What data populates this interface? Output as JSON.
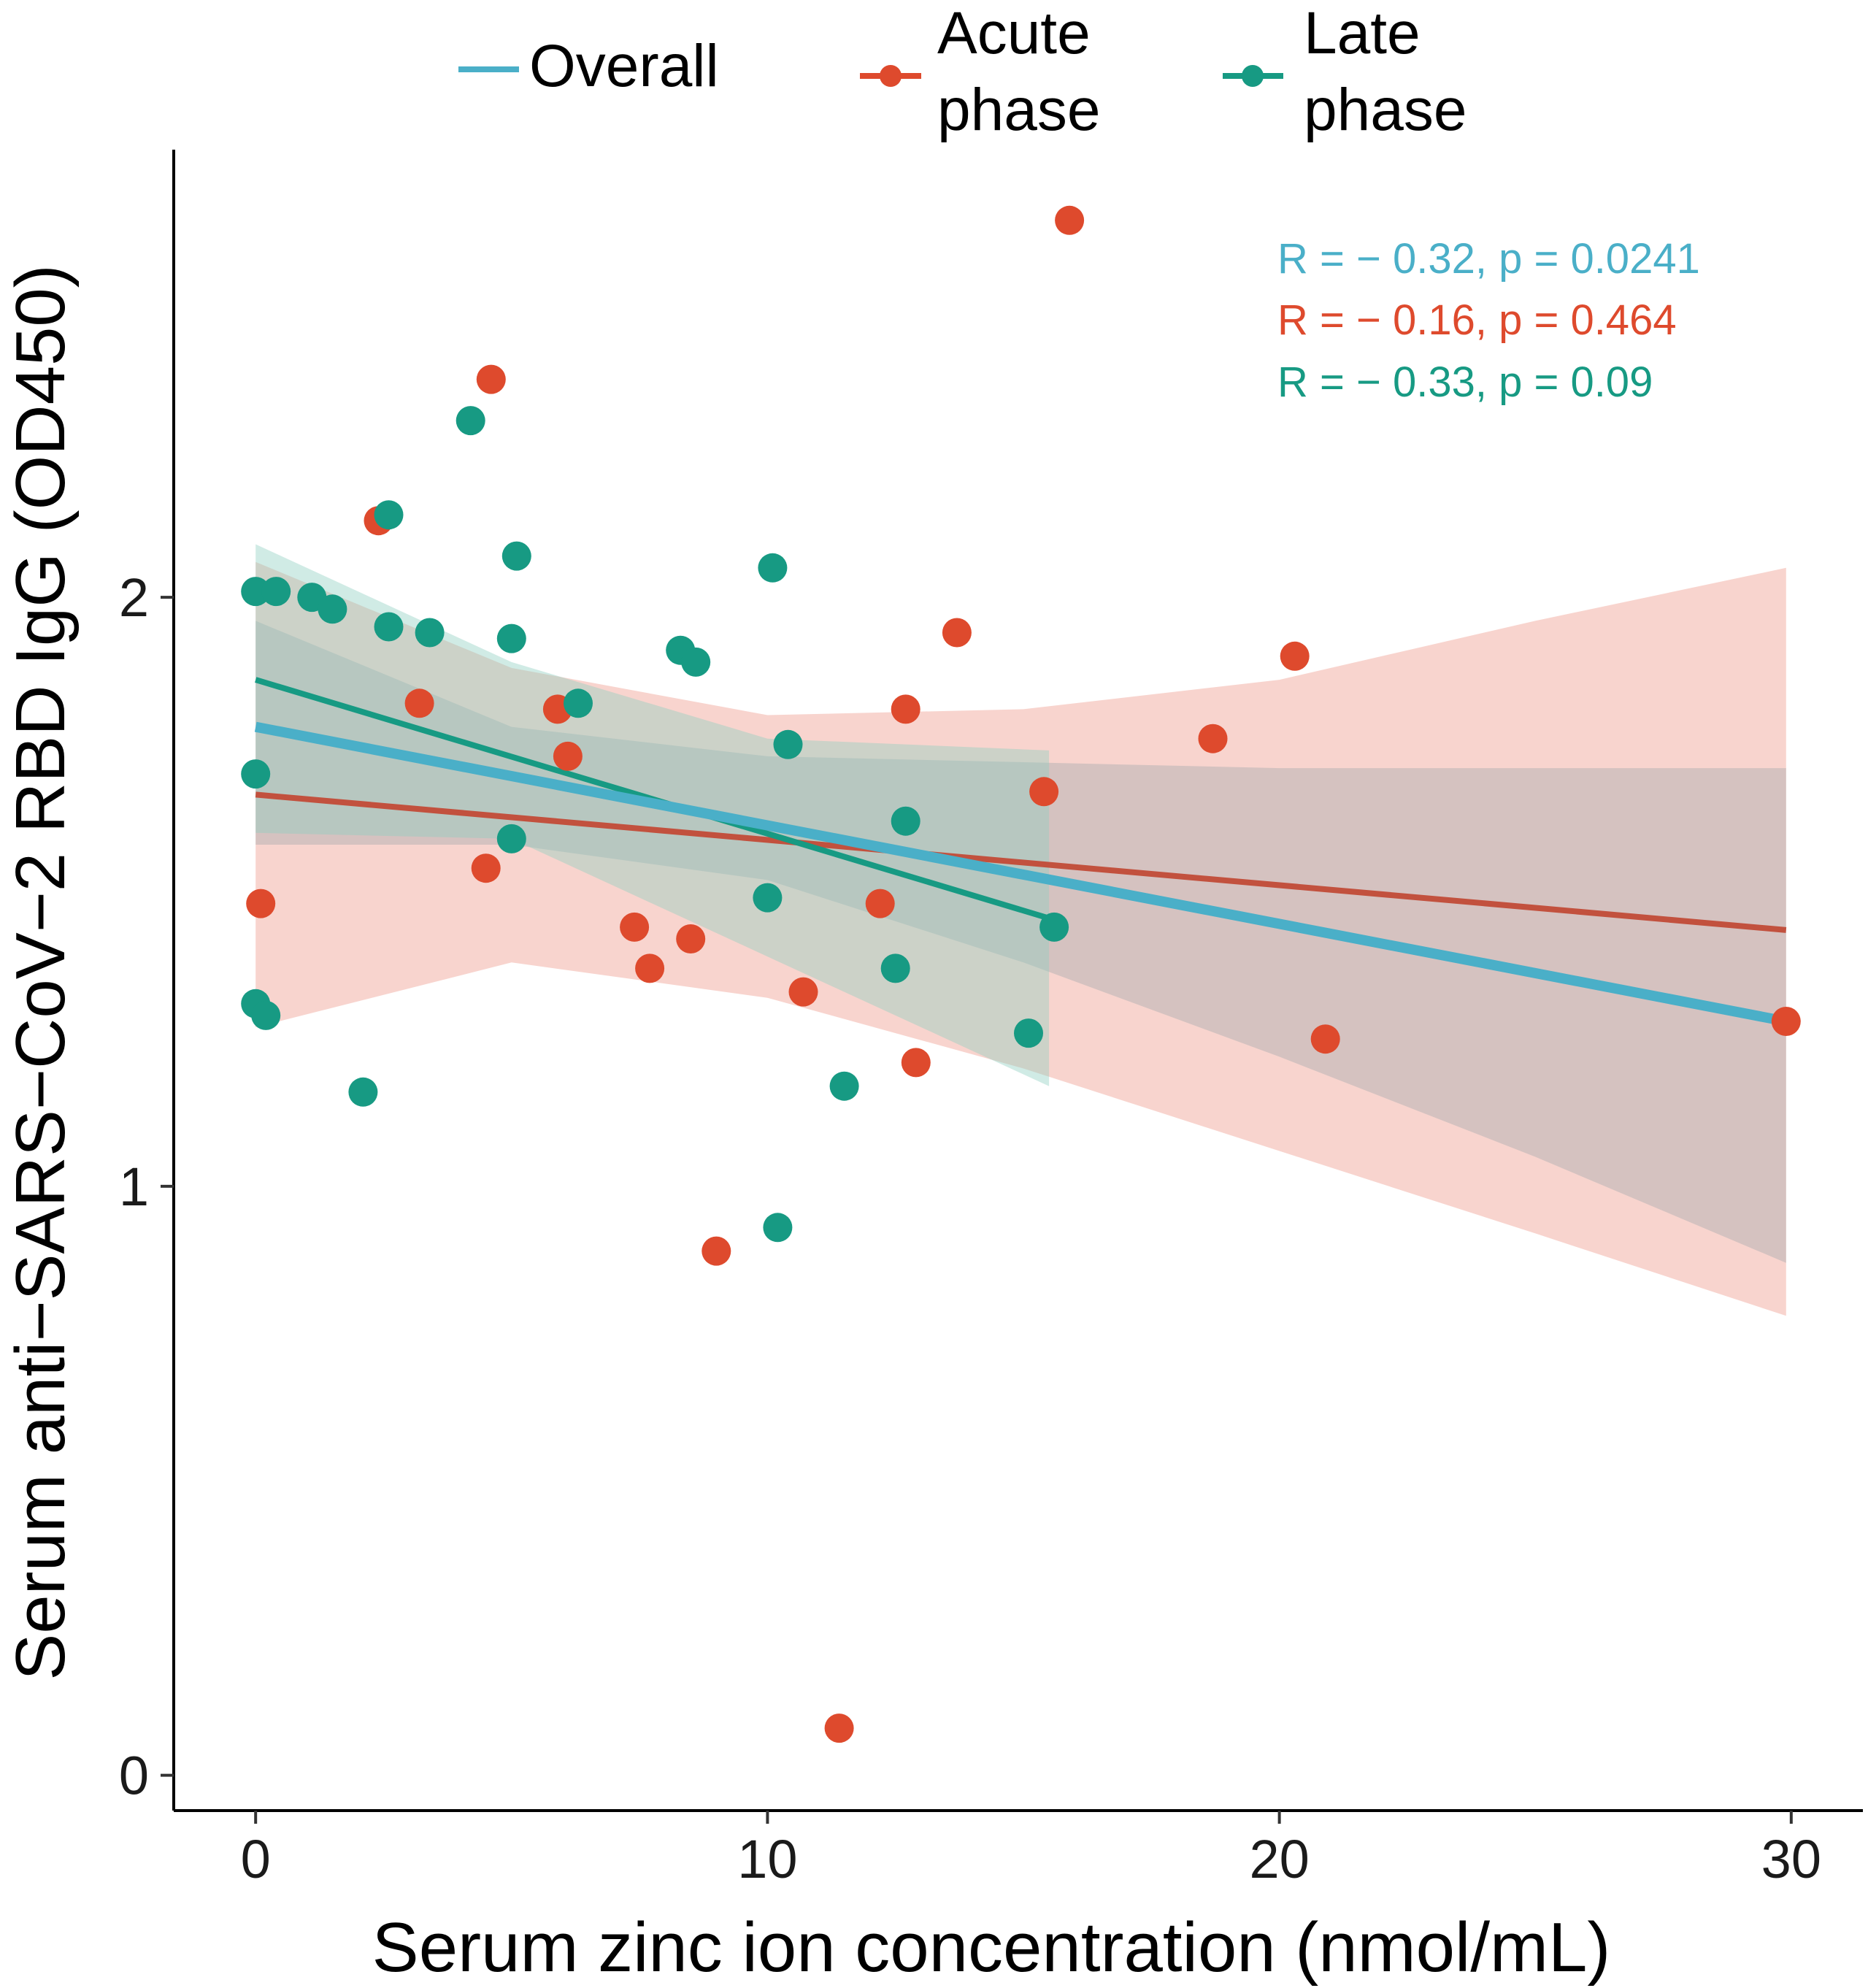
{
  "colors": {
    "overall": "#4aafc8",
    "acute": "#de4a2d",
    "late": "#179a83",
    "acute_band": "#f2b1a6",
    "late_band": "#8fd0c2",
    "overall_band": "#9aa6ac",
    "axis": "#000000"
  },
  "legend": {
    "items": [
      {
        "key": "overall",
        "lines": [
          "Overall"
        ],
        "marker": false
      },
      {
        "key": "acute",
        "lines": [
          "Acute",
          "phase"
        ],
        "marker": true
      },
      {
        "key": "late",
        "lines": [
          "Late",
          "phase"
        ],
        "marker": true
      }
    ]
  },
  "stats": [
    {
      "key": "overall",
      "text": "R = − 0.32, p = 0.0241"
    },
    {
      "key": "acute",
      "text": "R = − 0.16, p = 0.464"
    },
    {
      "key": "late",
      "text": "R = − 0.33, p = 0.09"
    }
  ],
  "chart_data": {
    "type": "scatter",
    "title": "",
    "xlabel": "Serum zinc ion concentration (nmol/mL)",
    "ylabel": "Serum anti−SARS−CoV−2 RBD IgG (OD450)",
    "xlim": [
      -1.6,
      31.4
    ],
    "ylim": [
      -0.06,
      2.76
    ],
    "xticks": [
      0,
      10,
      20,
      30
    ],
    "yticks": [
      0,
      1,
      2
    ],
    "grid": false,
    "legend_position": "top",
    "series": [
      {
        "name": "Acute phase",
        "key": "acute",
        "points": [
          [
            0.1,
            1.48
          ],
          [
            2.4,
            2.13
          ],
          [
            3.2,
            1.82
          ],
          [
            4.5,
            1.54
          ],
          [
            4.6,
            2.37
          ],
          [
            5.9,
            1.81
          ],
          [
            6.1,
            1.73
          ],
          [
            7.4,
            1.44
          ],
          [
            7.7,
            1.37
          ],
          [
            8.5,
            1.42
          ],
          [
            9.0,
            0.89
          ],
          [
            10.7,
            1.33
          ],
          [
            11.4,
            0.08
          ],
          [
            12.2,
            1.48
          ],
          [
            12.7,
            1.81
          ],
          [
            12.9,
            1.21
          ],
          [
            13.7,
            1.94
          ],
          [
            15.4,
            1.67
          ],
          [
            15.9,
            2.64
          ],
          [
            18.7,
            1.76
          ],
          [
            20.3,
            1.9
          ],
          [
            20.9,
            1.25
          ],
          [
            29.9,
            1.28
          ]
        ],
        "fit": {
          "x": [
            0,
            29.9
          ],
          "y": [
            1.665,
            1.435
          ]
        },
        "ci_band": {
          "x": [
            0,
            5,
            10,
            15,
            20,
            25,
            29.9
          ],
          "lower": [
            1.27,
            1.38,
            1.32,
            1.2,
            1.06,
            0.92,
            0.78
          ],
          "upper": [
            2.06,
            1.88,
            1.8,
            1.81,
            1.86,
            1.96,
            2.05
          ]
        }
      },
      {
        "name": "Late phase",
        "key": "late",
        "points": [
          [
            0.0,
            2.01
          ],
          [
            0.0,
            1.7
          ],
          [
            0.0,
            1.31
          ],
          [
            0.2,
            1.29
          ],
          [
            0.4,
            2.01
          ],
          [
            1.1,
            2.0
          ],
          [
            1.5,
            1.98
          ],
          [
            2.1,
            1.16
          ],
          [
            2.6,
            1.95
          ],
          [
            2.6,
            2.14
          ],
          [
            3.4,
            1.94
          ],
          [
            4.2,
            2.3
          ],
          [
            5.0,
            1.59
          ],
          [
            5.0,
            1.93
          ],
          [
            5.1,
            2.07
          ],
          [
            6.3,
            1.82
          ],
          [
            8.3,
            1.91
          ],
          [
            8.6,
            1.89
          ],
          [
            10.0,
            1.49
          ],
          [
            10.1,
            2.05
          ],
          [
            10.2,
            0.93
          ],
          [
            10.4,
            1.75
          ],
          [
            11.5,
            1.17
          ],
          [
            12.5,
            1.37
          ],
          [
            12.7,
            1.62
          ],
          [
            15.1,
            1.26
          ],
          [
            15.6,
            1.44
          ]
        ],
        "fit": {
          "x": [
            0,
            15.5
          ],
          "y": [
            1.86,
            1.455
          ]
        },
        "ci_band": {
          "x": [
            0,
            5,
            10,
            15.5
          ],
          "lower": [
            1.6,
            1.59,
            1.39,
            1.17
          ],
          "upper": [
            2.09,
            1.89,
            1.76,
            1.74
          ]
        }
      }
    ],
    "overall_fit": {
      "x": [
        0,
        29.9
      ],
      "y": [
        1.78,
        1.28
      ],
      "ci_band": {
        "x": [
          0,
          5,
          10,
          15,
          20,
          25,
          29.9
        ],
        "lower": [
          1.58,
          1.58,
          1.52,
          1.38,
          1.22,
          1.05,
          0.87
        ],
        "upper": [
          1.96,
          1.78,
          1.73,
          1.72,
          1.71,
          1.71,
          1.71
        ]
      }
    }
  }
}
